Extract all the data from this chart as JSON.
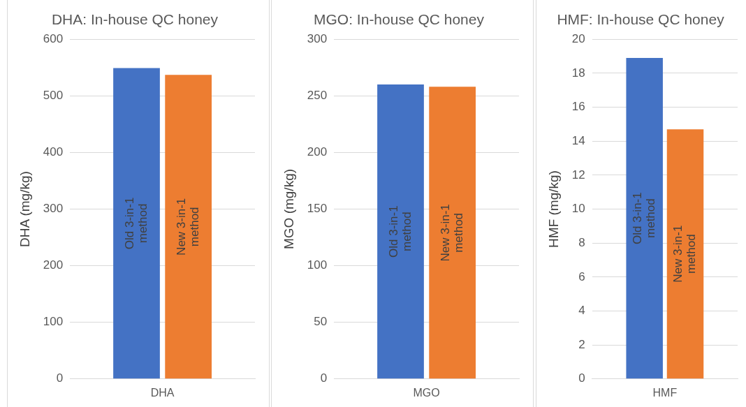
{
  "chart_data": [
    {
      "type": "bar",
      "title": "DHA: In-house QC honey",
      "ylabel": "DHA (mg/kg)",
      "categories": [
        "DHA"
      ],
      "series": [
        {
          "name": "Old 3-in-1 method",
          "color": "#4472c4",
          "values": [
            549
          ]
        },
        {
          "name": "New 3-in-1 method",
          "color": "#ed7d31",
          "values": [
            537
          ]
        }
      ],
      "ylim": [
        0,
        600
      ],
      "yticks": [
        0,
        100,
        200,
        300,
        400,
        500,
        600
      ],
      "grid": "y",
      "legend": false
    },
    {
      "type": "bar",
      "title": "MGO: In-house QC honey",
      "ylabel": "MGO (mg/kg)",
      "categories": [
        "MGO"
      ],
      "series": [
        {
          "name": "Old 3-in-1 method",
          "color": "#4472c4",
          "values": [
            260
          ]
        },
        {
          "name": "New 3-in-1 method",
          "color": "#ed7d31",
          "values": [
            258
          ]
        }
      ],
      "ylim": [
        0,
        300
      ],
      "yticks": [
        0,
        50,
        100,
        150,
        200,
        250,
        300
      ],
      "grid": "y",
      "legend": false
    },
    {
      "type": "bar",
      "title": "HMF: In-house QC honey",
      "ylabel": "HMF (mg/kg)",
      "categories": [
        "HMF"
      ],
      "series": [
        {
          "name": "Old 3-in-1 method",
          "color": "#4472c4",
          "values": [
            18.9
          ]
        },
        {
          "name": "New 3-in-1 method",
          "color": "#ed7d31",
          "values": [
            14.7
          ]
        }
      ],
      "ylim": [
        0,
        20
      ],
      "yticks": [
        0,
        2,
        4,
        6,
        8,
        10,
        12,
        14,
        16,
        18,
        20
      ],
      "grid": "y",
      "legend": false
    }
  ]
}
